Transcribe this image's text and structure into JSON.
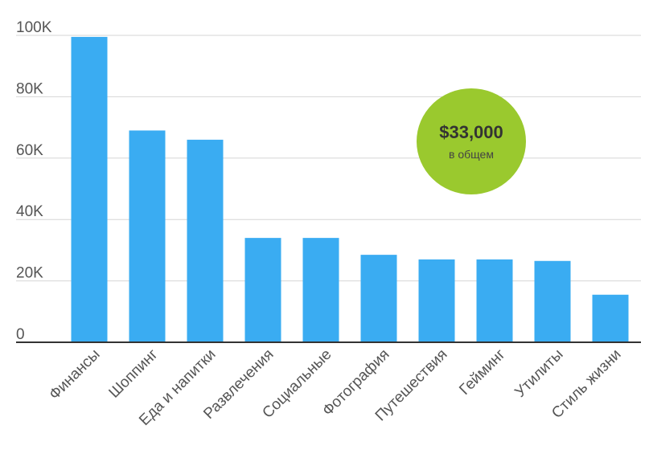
{
  "chart_data": {
    "type": "bar",
    "title": "",
    "xlabel": "",
    "ylabel": "",
    "categories": [
      "Финансы",
      "Шоппинг",
      "Еда и напитки",
      "Развлечения",
      "Социальные",
      "Фотография",
      "Путешествия",
      "Гейминг",
      "Утилиты",
      "Стиль жизни"
    ],
    "values": [
      99500,
      69000,
      66000,
      34000,
      34000,
      28500,
      27000,
      27000,
      26500,
      15500
    ],
    "ylim": [
      0,
      100000
    ],
    "yticks": [
      0,
      20000,
      40000,
      60000,
      80000,
      100000
    ],
    "ytick_labels": [
      "0",
      "20K",
      "40K",
      "60K",
      "80K",
      "100K"
    ],
    "grid": true,
    "bar_color": "#3aacf2"
  },
  "badge": {
    "value": "$33,000",
    "label": "в общем",
    "color": "#9ac92e"
  }
}
